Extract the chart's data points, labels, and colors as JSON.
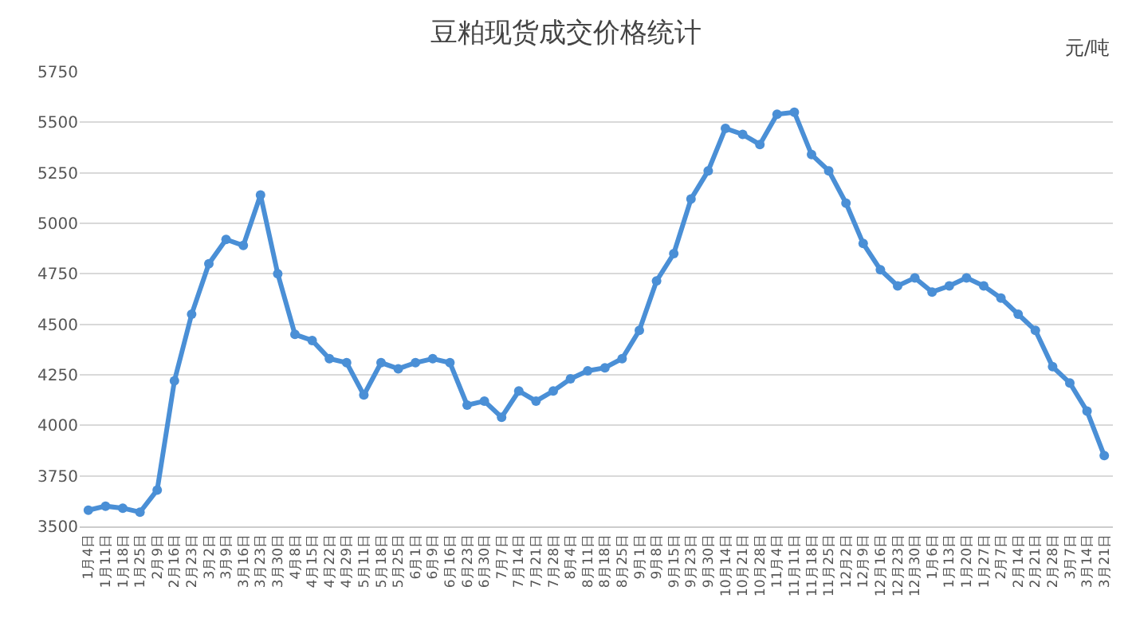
{
  "chart_data": {
    "type": "line",
    "title": "豆粕现货成交价格统计",
    "ylabel": "元/吨",
    "categories": [
      "1月4日",
      "1月11日",
      "1月18日",
      "1月25日",
      "2月9日",
      "2月16日",
      "2月23日",
      "3月2日",
      "3月9日",
      "3月16日",
      "3月23日",
      "3月30日",
      "4月8日",
      "4月15日",
      "4月22日",
      "4月29日",
      "5月11日",
      "5月18日",
      "5月25日",
      "6月1日",
      "6月9日",
      "6月16日",
      "6月23日",
      "6月30日",
      "7月7日",
      "7月14日",
      "7月21日",
      "7月28日",
      "8月4日",
      "8月11日",
      "8月18日",
      "8月25日",
      "9月1日",
      "9月8日",
      "9月15日",
      "9月23日",
      "9月30日",
      "10月14日",
      "10月21日",
      "10月28日",
      "11月4日",
      "11月11日",
      "11月18日",
      "11月25日",
      "12月2日",
      "12月9日",
      "12月16日",
      "12月23日",
      "12月30日",
      "1月6日",
      "1月13日",
      "1月20日",
      "1月27日",
      "2月7日",
      "2月14日",
      "2月21日",
      "2月28日",
      "3月7日",
      "3月14日",
      "3月21日"
    ],
    "series": [
      {
        "color": "#4a8fd6",
        "values": [
          3580,
          3600,
          3590,
          3570,
          3680,
          4220,
          4550,
          4800,
          4920,
          4890,
          5140,
          4750,
          4450,
          4420,
          4330,
          4310,
          4150,
          4310,
          4280,
          4310,
          4330,
          4310,
          4100,
          4120,
          4040,
          4170,
          4120,
          4170,
          4230,
          4270,
          4285,
          4330,
          4470,
          4715,
          4850,
          5120,
          5260,
          5470,
          5440,
          5390,
          5540,
          5550,
          5340,
          5260,
          5100,
          4900,
          4770,
          4690,
          4730,
          4660,
          4690,
          4730,
          4690,
          4630,
          4550,
          4470,
          4290,
          4210,
          4070,
          3850
        ]
      }
    ],
    "ylim": [
      3500,
      5750
    ],
    "yticks": [
      3500,
      3750,
      4000,
      4250,
      4500,
      4750,
      5000,
      5250,
      5500,
      5750
    ],
    "grid": "y",
    "marker": "circle",
    "line_style": "solid"
  }
}
